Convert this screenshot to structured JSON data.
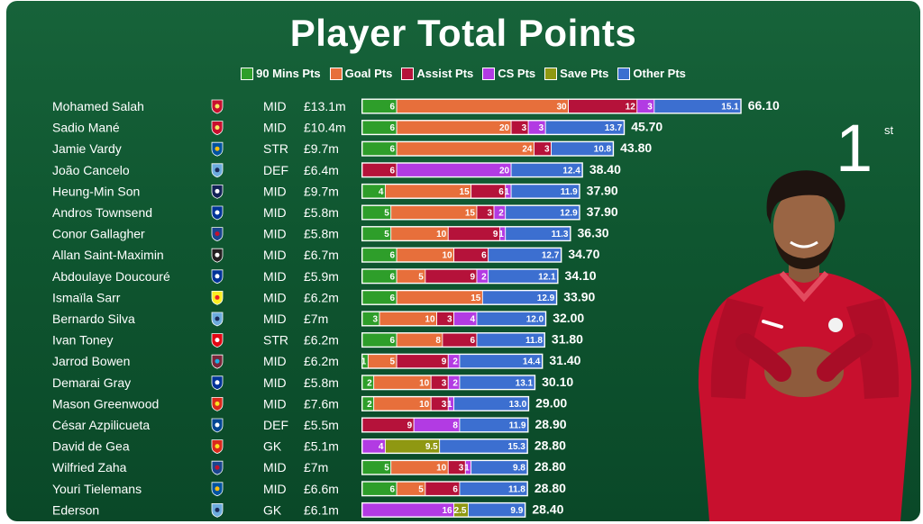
{
  "chart_data": {
    "type": "bar",
    "orientation": "horizontal",
    "stacked": true,
    "title": "Player Total Points",
    "legend_position": "top",
    "segment_names": [
      "90 Mins Pts",
      "Goal Pts",
      "Assist Pts",
      "CS Pts",
      "Save Pts",
      "Other Pts"
    ],
    "colors": [
      "#2e9e2a",
      "#e76f3b",
      "#b5123a",
      "#b23be3",
      "#8f9812",
      "#3c6fd0"
    ],
    "xlim": [
      0,
      70
    ],
    "players": [
      {
        "name": "Mohamed Salah",
        "club_icon": "liverpool-crest-icon",
        "pos": "MID",
        "price": "£13.1m",
        "pts": [
          6,
          30,
          12,
          3,
          0,
          15.1
        ],
        "labels": [
          "6",
          "30",
          "12",
          "3",
          "",
          "15.1"
        ],
        "total": "66.10"
      },
      {
        "name": "Sadio Mané",
        "club_icon": "liverpool-crest-icon",
        "pos": "MID",
        "price": "£10.4m",
        "pts": [
          6,
          20,
          3,
          3,
          0,
          13.7
        ],
        "labels": [
          "6",
          "20",
          "3",
          "3",
          "",
          "13.7"
        ],
        "total": "45.70"
      },
      {
        "name": "Jamie Vardy",
        "club_icon": "leicester-crest-icon",
        "pos": "STR",
        "price": "£9.7m",
        "pts": [
          6,
          24,
          3,
          0,
          0,
          10.8
        ],
        "labels": [
          "6",
          "24",
          "3",
          "",
          "",
          "10.8"
        ],
        "total": "43.80"
      },
      {
        "name": "João Cancelo",
        "club_icon": "man-city-crest-icon",
        "pos": "DEF",
        "price": "£6.4m",
        "pts": [
          0,
          0,
          6,
          20,
          0,
          12.4
        ],
        "labels": [
          "",
          "",
          "6",
          "20",
          "",
          "12.4"
        ],
        "total": "38.40"
      },
      {
        "name": "Heung-Min Son",
        "club_icon": "tottenham-crest-icon",
        "pos": "MID",
        "price": "£9.7m",
        "pts": [
          4,
          15,
          6,
          1,
          0,
          11.9
        ],
        "labels": [
          "4",
          "15",
          "6",
          "1",
          "",
          "11.9"
        ],
        "total": "37.90"
      },
      {
        "name": "Andros Townsend",
        "club_icon": "everton-crest-icon",
        "pos": "MID",
        "price": "£5.8m",
        "pts": [
          5,
          15,
          3,
          2,
          0,
          12.9
        ],
        "labels": [
          "5",
          "15",
          "3",
          "2",
          "",
          "12.9"
        ],
        "total": "37.90"
      },
      {
        "name": "Conor Gallagher",
        "club_icon": "crystal-palace-crest-icon",
        "pos": "MID",
        "price": "£5.8m",
        "pts": [
          5,
          10,
          9,
          1,
          0,
          11.3
        ],
        "labels": [
          "5",
          "10",
          "9",
          "1",
          "",
          "11.3"
        ],
        "total": "36.30"
      },
      {
        "name": "Allan Saint-Maximin",
        "club_icon": "newcastle-crest-icon",
        "pos": "MID",
        "price": "£6.7m",
        "pts": [
          6,
          10,
          6,
          0,
          0,
          12.7
        ],
        "labels": [
          "6",
          "10",
          "6",
          "",
          "",
          "12.7"
        ],
        "total": "34.70"
      },
      {
        "name": "Abdoulaye Doucouré",
        "club_icon": "everton-crest-icon",
        "pos": "MID",
        "price": "£5.9m",
        "pts": [
          6,
          5,
          9,
          2,
          0,
          12.1
        ],
        "labels": [
          "6",
          "5",
          "9",
          "2",
          "",
          "12.1"
        ],
        "total": "34.10"
      },
      {
        "name": "Ismaïla Sarr",
        "club_icon": "watford-crest-icon",
        "pos": "MID",
        "price": "£6.2m",
        "pts": [
          6,
          15,
          0,
          0,
          0,
          12.9
        ],
        "labels": [
          "6",
          "15",
          "",
          "",
          "",
          "12.9"
        ],
        "total": "33.90"
      },
      {
        "name": "Bernardo Silva",
        "club_icon": "man-city-crest-icon",
        "pos": "MID",
        "price": "£7m",
        "pts": [
          3,
          10,
          3,
          4,
          0,
          12.0
        ],
        "labels": [
          "3",
          "10",
          "3",
          "4",
          "",
          "12.0"
        ],
        "total": "32.00"
      },
      {
        "name": "Ivan Toney",
        "club_icon": "brentford-crest-icon",
        "pos": "STR",
        "price": "£6.2m",
        "pts": [
          6,
          8,
          6,
          0,
          0,
          11.8
        ],
        "labels": [
          "6",
          "8",
          "6",
          "",
          "",
          "11.8"
        ],
        "total": "31.80"
      },
      {
        "name": "Jarrod Bowen",
        "club_icon": "west-ham-crest-icon",
        "pos": "MID",
        "price": "£6.2m",
        "pts": [
          1,
          5,
          9,
          2,
          0,
          14.4
        ],
        "labels": [
          "1",
          "5",
          "9",
          "2",
          "",
          "14.4"
        ],
        "total": "31.40"
      },
      {
        "name": "Demarai Gray",
        "club_icon": "everton-crest-icon",
        "pos": "MID",
        "price": "£5.8m",
        "pts": [
          2,
          10,
          3,
          2,
          0,
          13.1
        ],
        "labels": [
          "2",
          "10",
          "3",
          "2",
          "",
          "13.1"
        ],
        "total": "30.10"
      },
      {
        "name": "Mason Greenwood",
        "club_icon": "man-utd-crest-icon",
        "pos": "MID",
        "price": "£7.6m",
        "pts": [
          2,
          10,
          3,
          1,
          0,
          13.0
        ],
        "labels": [
          "2",
          "10",
          "3",
          "1",
          "",
          "13.0"
        ],
        "total": "29.00"
      },
      {
        "name": "César Azpilicueta",
        "club_icon": "chelsea-crest-icon",
        "pos": "DEF",
        "price": "£5.5m",
        "pts": [
          0,
          0,
          9,
          8,
          0,
          11.9
        ],
        "labels": [
          "",
          "",
          "9",
          "8",
          "",
          "11.9"
        ],
        "total": "28.90"
      },
      {
        "name": "David de Gea",
        "club_icon": "man-utd-crest-icon",
        "pos": "GK",
        "price": "£5.1m",
        "pts": [
          0,
          0,
          0,
          4,
          9.5,
          15.3
        ],
        "labels": [
          "",
          "",
          "",
          "4",
          "9.5",
          "15.3"
        ],
        "total": "28.80"
      },
      {
        "name": "Wilfried Zaha",
        "club_icon": "crystal-palace-crest-icon",
        "pos": "MID",
        "price": "£7m",
        "pts": [
          5,
          10,
          3,
          1,
          0,
          9.8
        ],
        "labels": [
          "5",
          "10",
          "3",
          "1",
          "",
          "9.8"
        ],
        "total": "28.80"
      },
      {
        "name": "Youri Tielemans",
        "club_icon": "leicester-crest-icon",
        "pos": "MID",
        "price": "£6.6m",
        "pts": [
          6,
          5,
          6,
          0,
          0,
          11.8
        ],
        "labels": [
          "6",
          "5",
          "6",
          "",
          "",
          "11.8"
        ],
        "total": "28.80"
      },
      {
        "name": "Ederson",
        "club_icon": "man-city-crest-icon",
        "pos": "GK",
        "price": "£6.1m",
        "pts": [
          0,
          0,
          0,
          16,
          2.5,
          9.9
        ],
        "labels": [
          "",
          "",
          "",
          "16",
          "2.5",
          "9.9"
        ],
        "total": "28.40"
      }
    ]
  },
  "rank": {
    "number": "1",
    "suffix": "st"
  },
  "portrait": {
    "icon": "player-portrait-icon"
  }
}
